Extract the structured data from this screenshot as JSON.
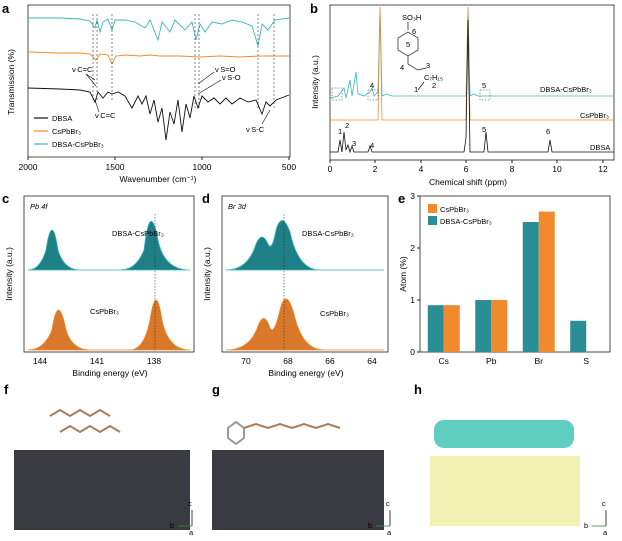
{
  "a": {
    "letter": "a",
    "ylabel": "Transmission (%)",
    "xlabel": "Wavenumber (cm⁻¹)",
    "xticks": [
      "2000",
      "1500",
      "1000",
      "500"
    ],
    "legend": [
      "DBSA",
      "CsPbBr₃",
      "DBSA-CsPbBr₃"
    ],
    "annotations": [
      "ν C=C",
      "ν C=C",
      "ν S=O",
      "ν S-O",
      "ν S-C"
    ],
    "colors": {
      "DBSA": "#111111",
      "CsPbBr3": "#f08a2c",
      "DBSA-CsPbBr3": "#37b7c0"
    }
  },
  "b": {
    "letter": "b",
    "ylabel": "Intensity (a.u.)",
    "xlabel": "Chemical shift (ppm)",
    "xticks": [
      "0",
      "2",
      "4",
      "6",
      "8",
      "10",
      "12"
    ],
    "traces": [
      "DBSA-CsPbBr₃",
      "CsPbBr₃",
      "DBSA"
    ],
    "peak_labels": [
      "1",
      "2",
      "3",
      "4",
      "5",
      "6",
      "4",
      "5"
    ],
    "molecule": {
      "group": "SO₃H",
      "ring": "5",
      "pos6": "6",
      "chain": "C₇H₁₅",
      "n1": "1",
      "n2": "2",
      "n3": "3",
      "n4": "4"
    }
  },
  "c": {
    "letter": "c",
    "title": "Pb 4f",
    "ylabel": "Intensity (a.u.)",
    "xlabel": "Binding energy (eV)",
    "xticks": [
      "144",
      "141",
      "138"
    ],
    "traces": [
      "DBSA-CsPbBr₃",
      "CsPbBr₃"
    ]
  },
  "d": {
    "letter": "d",
    "title": "Br 3d",
    "ylabel": "Intensity (a.u.)",
    "xlabel": "Binding energy (eV)",
    "xticks": [
      "70",
      "68",
      "66",
      "64"
    ],
    "traces": [
      "DBSA-CsPbBr₃",
      "CsPbBr₃"
    ]
  },
  "e": {
    "letter": "e",
    "ylabel": "Atom (%)",
    "legend": [
      "CsPbBr₃",
      "DBSA-CsPbBr₃"
    ],
    "yticks": [
      "0",
      "1",
      "2",
      "3"
    ]
  },
  "chart_data": [
    {
      "type": "bar",
      "panel": "e",
      "categories": [
        "Cs",
        "Pb",
        "Br",
        "S"
      ],
      "series": [
        {
          "name": "CsPbBr₃",
          "values": [
            0.9,
            1.0,
            2.7,
            0
          ]
        },
        {
          "name": "DBSA-CsPbBr₃",
          "values": [
            0.9,
            1.0,
            2.5,
            0.6
          ]
        }
      ],
      "ylabel": "Atom (%)",
      "ylim": [
        0,
        3
      ],
      "legend": "top-left"
    }
  ],
  "f": {
    "letter": "f",
    "axes": {
      "c": "c",
      "b": "b",
      "a": "a"
    }
  },
  "g": {
    "letter": "g",
    "axes": {
      "c": "c",
      "b": "b",
      "a": "a"
    }
  },
  "h": {
    "letter": "h",
    "axes": {
      "c": "c",
      "b": "b",
      "a": "a"
    }
  }
}
